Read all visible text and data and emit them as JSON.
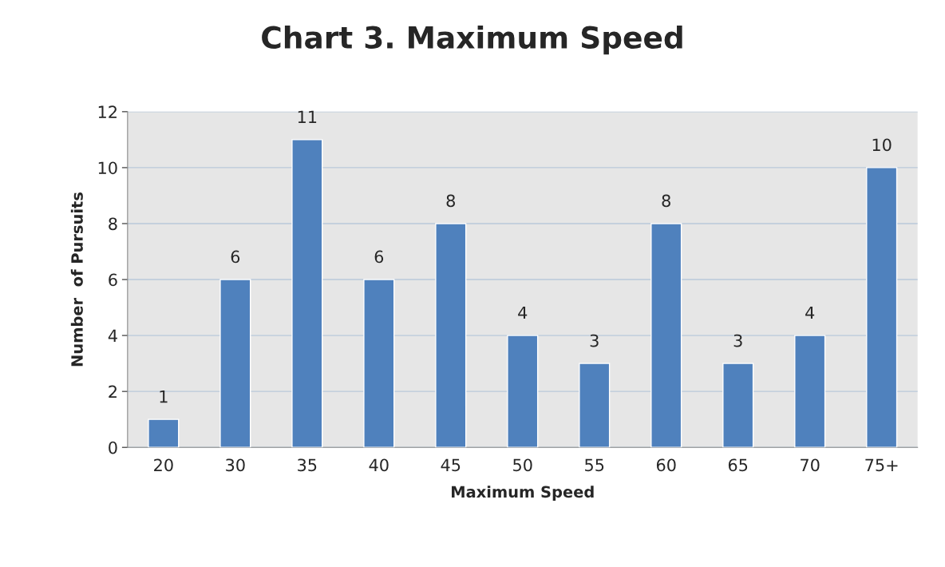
{
  "chart_data": {
    "type": "bar",
    "title": "Chart 3. Maximum Speed",
    "xlabel": "Maximum Speed",
    "ylabel": "Number  of Pursuits",
    "categories": [
      "20",
      "30",
      "35",
      "40",
      "45",
      "50",
      "55",
      "60",
      "65",
      "70",
      "75+"
    ],
    "values": [
      1,
      6,
      11,
      6,
      8,
      4,
      3,
      8,
      3,
      4,
      10
    ],
    "color": "#4f81bd",
    "ylim": [
      0,
      12
    ],
    "yticks": [
      0,
      2,
      4,
      6,
      8,
      10,
      12
    ],
    "grid": "y",
    "data_labels": true,
    "legend": false
  }
}
